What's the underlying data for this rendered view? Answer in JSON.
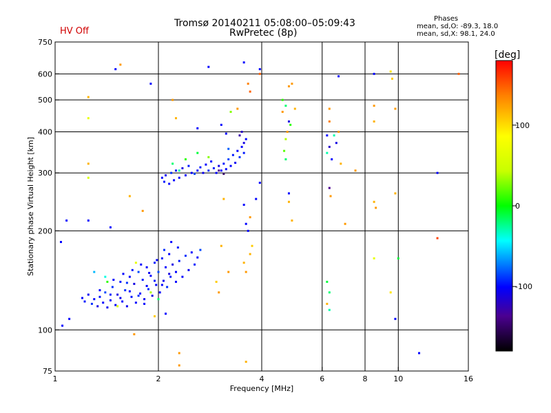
{
  "header": {
    "title_line1": "Tromsø 20140211 05:08:00–05:09:43",
    "title_line2": "RwPretec (8p)",
    "status": "HV Off",
    "status_color": "#d00000"
  },
  "phase_box": {
    "title": "Phases",
    "line1": "mean, sd,O: -89.3, 18.0",
    "line2": "mean, sd,X:  98.1, 24.0"
  },
  "colorbar": {
    "label": "[deg]",
    "ticks": [
      {
        "label": "100",
        "value": 100
      },
      {
        "label": "0",
        "value": 0
      },
      {
        "label": "-100",
        "value": -100
      }
    ],
    "range": [
      -180,
      180
    ]
  },
  "chart_data": {
    "type": "scatter",
    "title": "Tromsø 20140211 05:08:00–05:09:43",
    "subtitle": "RwPretec (8p)",
    "xlabel": "Frequency [MHz]",
    "ylabel": "Stationary phase Virtual Height [km]",
    "xscale": "log",
    "yscale": "log",
    "xlim": [
      1,
      16
    ],
    "ylim": [
      75,
      750
    ],
    "grid": true,
    "x_ticks": [
      {
        "label": "1",
        "value": 1
      },
      {
        "label": "2",
        "value": 2
      },
      {
        "label": "4",
        "value": 4
      },
      {
        "label": "6",
        "value": 6
      },
      {
        "label": "8",
        "value": 8
      },
      {
        "label": "10",
        "value": 10
      },
      {
        "label": "16",
        "value": 16
      }
    ],
    "x_grid": [
      2,
      4,
      6,
      8,
      10
    ],
    "y_ticks": [
      {
        "label": "75",
        "value": 75
      },
      {
        "label": "100",
        "value": 100
      },
      {
        "label": "200",
        "value": 200
      },
      {
        "label": "300",
        "value": 300
      },
      {
        "label": "400",
        "value": 400
      },
      {
        "label": "500",
        "value": 500
      },
      {
        "label": "600",
        "value": 600
      },
      {
        "label": "750",
        "value": 750
      }
    ],
    "y_grid": [
      100,
      200,
      300,
      400,
      500,
      600
    ],
    "points": [
      [
        1.2,
        125,
        -100
      ],
      [
        1.22,
        122,
        -95
      ],
      [
        1.25,
        128,
        -105
      ],
      [
        1.28,
        120,
        -90
      ],
      [
        1.3,
        124,
        -100
      ],
      [
        1.33,
        118,
        -110
      ],
      [
        1.35,
        126,
        -95
      ],
      [
        1.38,
        121,
        -100
      ],
      [
        1.4,
        130,
        -85
      ],
      [
        1.42,
        117,
        -105
      ],
      [
        1.45,
        123,
        -100
      ],
      [
        1.47,
        135,
        -90
      ],
      [
        1.5,
        119,
        -100
      ],
      [
        1.52,
        128,
        -110
      ],
      [
        1.55,
        140,
        -95
      ],
      [
        1.57,
        122,
        -100
      ],
      [
        1.6,
        132,
        -90
      ],
      [
        1.62,
        118,
        -105
      ],
      [
        1.65,
        145,
        -100
      ],
      [
        1.67,
        126,
        -95
      ],
      [
        1.7,
        138,
        -110
      ],
      [
        1.72,
        121,
        -100
      ],
      [
        1.75,
        150,
        -85
      ],
      [
        1.77,
        129,
        -100
      ],
      [
        1.8,
        142,
        -95
      ],
      [
        1.82,
        124,
        -105
      ],
      [
        1.85,
        155,
        -100
      ],
      [
        1.87,
        133,
        -90
      ],
      [
        1.9,
        146,
        -100
      ],
      [
        1.92,
        127,
        -110
      ],
      [
        1.95,
        160,
        -95
      ],
      [
        1.97,
        137,
        -100
      ],
      [
        2.0,
        150,
        -85
      ],
      [
        2.02,
        130,
        -100
      ],
      [
        2.05,
        165,
        -95
      ],
      [
        2.07,
        141,
        -105
      ],
      [
        2.1,
        155,
        -100
      ],
      [
        2.12,
        135,
        -90
      ],
      [
        2.15,
        170,
        -100
      ],
      [
        2.17,
        145,
        -95
      ],
      [
        2.2,
        158,
        -110
      ],
      [
        2.25,
        150,
        -100
      ],
      [
        2.3,
        162,
        -95
      ],
      [
        2.35,
        145,
        -100
      ],
      [
        2.4,
        168,
        -90
      ],
      [
        2.45,
        152,
        -105
      ],
      [
        2.5,
        172,
        -100
      ],
      [
        2.55,
        158,
        -95
      ],
      [
        2.6,
        166,
        -100
      ],
      [
        2.65,
        175,
        -85
      ],
      [
        1.35,
        132,
        -100
      ],
      [
        1.45,
        128,
        -95
      ],
      [
        1.55,
        125,
        -105
      ],
      [
        1.65,
        131,
        -100
      ],
      [
        1.75,
        127,
        -90
      ],
      [
        1.85,
        136,
        -100
      ],
      [
        1.95,
        141,
        -95
      ],
      [
        2.05,
        137,
        -100
      ],
      [
        2.15,
        148,
        -110
      ],
      [
        2.25,
        140,
        -100
      ],
      [
        1.58,
        148,
        -100
      ],
      [
        1.68,
        152,
        -95
      ],
      [
        1.78,
        158,
        -100
      ],
      [
        1.88,
        149,
        -105
      ],
      [
        1.98,
        163,
        -100
      ],
      [
        2.08,
        175,
        -90
      ],
      [
        2.18,
        185,
        -100
      ],
      [
        2.28,
        178,
        -95
      ],
      [
        1.48,
        142,
        -100
      ],
      [
        1.62,
        139,
        -90
      ],
      [
        1.72,
        160,
        70
      ],
      [
        1.52,
        118,
        60
      ],
      [
        1.9,
        130,
        40
      ],
      [
        2.0,
        124,
        -20
      ],
      [
        1.42,
        140,
        10
      ],
      [
        1.3,
        150,
        -60
      ],
      [
        1.4,
        145,
        -40
      ],
      [
        1.95,
        110,
        110
      ],
      [
        2.1,
        112,
        -100
      ],
      [
        1.82,
        120,
        -100
      ],
      [
        2.05,
        290,
        -100
      ],
      [
        2.08,
        282,
        -95
      ],
      [
        2.1,
        295,
        -105
      ],
      [
        2.15,
        278,
        -100
      ],
      [
        2.18,
        300,
        -90
      ],
      [
        2.22,
        285,
        -100
      ],
      [
        2.25,
        305,
        -95
      ],
      [
        2.3,
        290,
        -100
      ],
      [
        2.35,
        310,
        -110
      ],
      [
        2.4,
        295,
        -100
      ],
      [
        2.45,
        315,
        -95
      ],
      [
        2.5,
        300,
        -100
      ],
      [
        2.55,
        298,
        -85
      ],
      [
        2.6,
        305,
        -100
      ],
      [
        2.65,
        312,
        -95
      ],
      [
        2.7,
        300,
        -105
      ],
      [
        2.75,
        318,
        -100
      ],
      [
        2.8,
        305,
        -90
      ],
      [
        2.85,
        325,
        -100
      ],
      [
        2.9,
        310,
        -95
      ],
      [
        2.95,
        300,
        -100
      ],
      [
        3.0,
        315,
        -110
      ],
      [
        3.05,
        305,
        -100
      ],
      [
        3.1,
        320,
        -95
      ],
      [
        3.15,
        308,
        -100
      ],
      [
        3.2,
        330,
        -85
      ],
      [
        3.25,
        315,
        -100
      ],
      [
        3.3,
        340,
        -95
      ],
      [
        3.35,
        322,
        -105
      ],
      [
        3.4,
        350,
        -100
      ],
      [
        3.45,
        335,
        -90
      ],
      [
        3.5,
        360,
        -100
      ],
      [
        3.55,
        345,
        -95
      ],
      [
        3.6,
        380,
        -100
      ],
      [
        3.5,
        400,
        -120
      ],
      [
        3.45,
        390,
        -130
      ],
      [
        3.55,
        370,
        -110
      ],
      [
        3.0,
        305,
        -140
      ],
      [
        3.1,
        298,
        -150
      ],
      [
        2.2,
        320,
        -20
      ],
      [
        2.4,
        330,
        10
      ],
      [
        2.6,
        345,
        -10
      ],
      [
        2.8,
        335,
        30
      ],
      [
        3.2,
        355,
        -80
      ],
      [
        2.3,
        305,
        -30
      ],
      [
        1.05,
        103,
        -100
      ],
      [
        1.1,
        108,
        -100
      ],
      [
        1.08,
        215,
        -100
      ],
      [
        1.04,
        185,
        -100
      ],
      [
        1.25,
        215,
        -100
      ],
      [
        1.45,
        205,
        -100
      ],
      [
        1.9,
        560,
        -100
      ],
      [
        2.8,
        630,
        -100
      ],
      [
        3.55,
        650,
        -100
      ],
      [
        3.95,
        620,
        -100
      ],
      [
        1.5,
        620,
        -100
      ],
      [
        9.8,
        108,
        -100
      ],
      [
        11.5,
        85,
        -100
      ],
      [
        13.0,
        300,
        -100
      ],
      [
        8.5,
        600,
        -100
      ],
      [
        1.55,
        640,
        130
      ],
      [
        1.25,
        510,
        120
      ],
      [
        1.25,
        440,
        70
      ],
      [
        1.25,
        320,
        120
      ],
      [
        1.25,
        290,
        60
      ],
      [
        1.65,
        255,
        120
      ],
      [
        1.8,
        230,
        130
      ],
      [
        2.2,
        500,
        130
      ],
      [
        2.25,
        440,
        120
      ],
      [
        2.3,
        85,
        130
      ],
      [
        2.3,
        78,
        130
      ],
      [
        3.6,
        80,
        120
      ],
      [
        3.65,
        560,
        140
      ],
      [
        3.7,
        530,
        150
      ],
      [
        3.95,
        600,
        150
      ],
      [
        4.6,
        460,
        130
      ],
      [
        4.8,
        550,
        130
      ],
      [
        4.9,
        560,
        130
      ],
      [
        5.0,
        470,
        120
      ],
      [
        6.3,
        470,
        130
      ],
      [
        6.3,
        430,
        140
      ],
      [
        6.7,
        400,
        130
      ],
      [
        6.8,
        320,
        120
      ],
      [
        7.5,
        305,
        130
      ],
      [
        8.5,
        480,
        130
      ],
      [
        8.5,
        430,
        120
      ],
      [
        8.5,
        245,
        120
      ],
      [
        8.6,
        235,
        130
      ],
      [
        9.5,
        610,
        100
      ],
      [
        9.6,
        580,
        110
      ],
      [
        9.8,
        470,
        130
      ],
      [
        9.8,
        260,
        120
      ],
      [
        9.5,
        130,
        100
      ],
      [
        8.5,
        165,
        70
      ],
      [
        10.0,
        165,
        -10
      ],
      [
        15.0,
        600,
        150
      ],
      [
        13.0,
        190,
        160
      ],
      [
        7.0,
        210,
        130
      ],
      [
        4.9,
        215,
        120
      ],
      [
        1.7,
        97,
        130
      ],
      [
        6.2,
        140,
        -10
      ],
      [
        6.3,
        130,
        -20
      ],
      [
        6.2,
        120,
        120
      ],
      [
        6.3,
        115,
        -30
      ],
      [
        3.55,
        160,
        120
      ],
      [
        3.6,
        150,
        130
      ],
      [
        3.7,
        170,
        120
      ],
      [
        3.75,
        180,
        110
      ],
      [
        3.65,
        200,
        -100
      ],
      [
        3.6,
        210,
        -100
      ],
      [
        3.7,
        220,
        130
      ],
      [
        3.85,
        250,
        -100
      ],
      [
        3.95,
        280,
        -100
      ],
      [
        3.55,
        240,
        -100
      ],
      [
        3.1,
        250,
        120
      ],
      [
        3.05,
        180,
        120
      ],
      [
        3.0,
        130,
        130
      ],
      [
        2.95,
        140,
        110
      ],
      [
        3.2,
        150,
        130
      ],
      [
        4.6,
        500,
        10
      ],
      [
        4.7,
        480,
        -20
      ],
      [
        4.8,
        430,
        -110
      ],
      [
        4.85,
        420,
        10
      ],
      [
        4.75,
        400,
        130
      ],
      [
        4.7,
        380,
        40
      ],
      [
        4.65,
        350,
        20
      ],
      [
        4.7,
        330,
        -20
      ],
      [
        4.8,
        260,
        -100
      ],
      [
        4.8,
        245,
        120
      ],
      [
        6.2,
        390,
        -100
      ],
      [
        6.3,
        360,
        -120
      ],
      [
        6.4,
        330,
        -100
      ],
      [
        6.5,
        390,
        -30
      ],
      [
        6.6,
        370,
        -110
      ],
      [
        6.7,
        590,
        -100
      ],
      [
        6.3,
        270,
        -140
      ],
      [
        6.35,
        255,
        130
      ],
      [
        6.2,
        345,
        -30
      ],
      [
        2.6,
        410,
        -100
      ],
      [
        3.25,
        460,
        30
      ],
      [
        3.05,
        420,
        -100
      ],
      [
        3.4,
        470,
        130
      ],
      [
        3.15,
        395,
        -100
      ]
    ]
  }
}
